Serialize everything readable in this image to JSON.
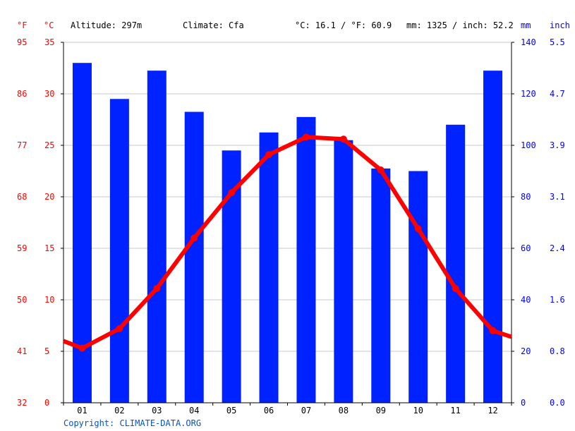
{
  "header": {
    "unit_f": "°F",
    "unit_c": "°C",
    "altitude": "Altitude: 297m",
    "climate": "Climate: Cfa",
    "temp_avg": "°C: 16.1 / °F: 60.9",
    "precip_total": "mm: 1325 / inch: 52.2",
    "unit_mm": "mm",
    "unit_inch": "inch"
  },
  "footer": {
    "copyright": "Copyright: CLIMATE-DATA.ORG"
  },
  "colors": {
    "temperature": "#ff0000",
    "precipitation": "#0022ff",
    "grid": "#c8c8c8"
  },
  "chart_data": {
    "type": "bar",
    "categories": [
      "01",
      "02",
      "03",
      "04",
      "05",
      "06",
      "07",
      "08",
      "09",
      "10",
      "11",
      "12"
    ],
    "series": [
      {
        "values": [
          132,
          118,
          129,
          113,
          98,
          105,
          111,
          102,
          91,
          90,
          108,
          129
        ]
      },
      {
        "values": [
          5.3,
          7.2,
          11.1,
          16.0,
          20.4,
          24.1,
          25.8,
          25.6,
          22.6,
          16.9,
          11.1,
          7.0
        ]
      }
    ],
    "temp_start": 6.0,
    "temp_end": 6.4,
    "y_left_c": {
      "min": 0,
      "max": 35,
      "ticks": [
        "0",
        "5",
        "10",
        "15",
        "20",
        "25",
        "30",
        "35"
      ]
    },
    "y_left_f": {
      "ticks": [
        "32",
        "41",
        "50",
        "59",
        "68",
        "77",
        "86",
        "95"
      ]
    },
    "y_right_mm": {
      "min": 0,
      "max": 140,
      "ticks": [
        "0",
        "20",
        "40",
        "60",
        "80",
        "100",
        "120",
        "140"
      ]
    },
    "y_right_inch": {
      "ticks": [
        "0.0",
        "0.8",
        "1.6",
        "2.4",
        "3.1",
        "3.9",
        "4.7",
        "5.5"
      ]
    },
    "grid": true
  }
}
